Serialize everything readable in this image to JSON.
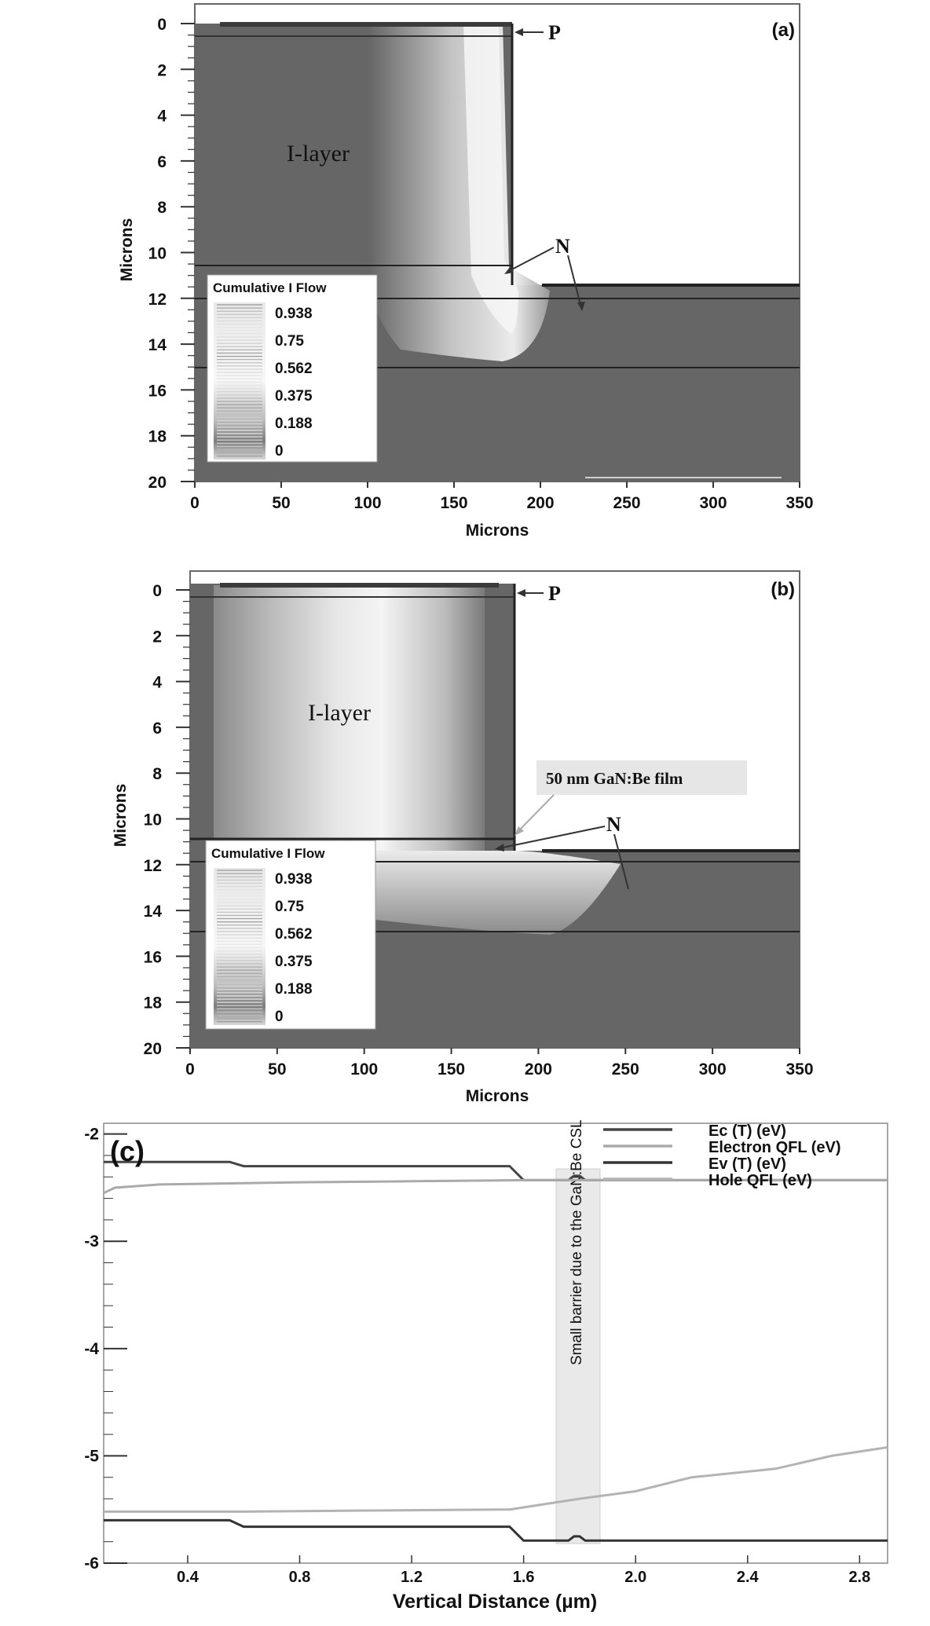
{
  "chart_data": [
    {
      "panel": "(a)",
      "type": "heatmap",
      "xlabel": "Microns",
      "ylabel": "Microns",
      "xlim": [
        0,
        350
      ],
      "ylim": [
        0,
        20
      ],
      "y_reversed": true,
      "xticks": [
        "0",
        "50",
        "100",
        "150",
        "200",
        "250",
        "300",
        "350"
      ],
      "yticks": [
        "0",
        "2",
        "4",
        "6",
        "8",
        "10",
        "12",
        "14",
        "16",
        "18",
        "20"
      ],
      "annotations": {
        "p": "P",
        "n": "N",
        "layer": "I-layer"
      },
      "legend": {
        "title": "Cumulative I Flow",
        "labels": [
          "0.938",
          "0.75",
          "0.562",
          "0.375",
          "0.188",
          "0"
        ]
      }
    },
    {
      "panel": "(b)",
      "type": "heatmap",
      "xlabel": "Microns",
      "ylabel": "Microns",
      "xlim": [
        0,
        350
      ],
      "ylim": [
        0,
        20
      ],
      "y_reversed": true,
      "xticks": [
        "0",
        "50",
        "100",
        "150",
        "200",
        "250",
        "300",
        "350"
      ],
      "yticks": [
        "0",
        "2",
        "4",
        "6",
        "8",
        "10",
        "12",
        "14",
        "16",
        "18",
        "20"
      ],
      "annotations": {
        "p": "P",
        "n": "N",
        "layer": "I-layer",
        "film": "50 nm GaN:Be film"
      },
      "legend": {
        "title": "Cumulative I Flow",
        "labels": [
          "0.938",
          "0.75",
          "0.562",
          "0.375",
          "0.188",
          "0"
        ]
      }
    },
    {
      "panel": "(c)",
      "type": "line",
      "xlabel": "Vertical Distance (µm)",
      "ylabel": "",
      "xlim": [
        0.1,
        2.9
      ],
      "ylim": [
        -6,
        -1.9
      ],
      "xticks": [
        "0.4",
        "0.8",
        "1.2",
        "1.6",
        "2.0",
        "2.4",
        "2.8"
      ],
      "yticks": [
        "-2",
        "-3",
        "-4",
        "-5",
        "-6"
      ],
      "annotation": "Small barrier due to the GaN:Be CSL",
      "series": [
        {
          "name": "Ec (T) (eV)",
          "color": "#444444",
          "x": [
            0.1,
            0.55,
            0.6,
            1.55,
            1.6,
            1.76,
            1.78,
            1.8,
            1.82,
            2.9
          ],
          "y": [
            -2.26,
            -2.26,
            -2.3,
            -2.3,
            -2.43,
            -2.43,
            -2.39,
            -2.39,
            -2.43,
            -2.43
          ]
        },
        {
          "name": "Electron QFL (eV)",
          "color": "#aaaaaa",
          "x": [
            0.1,
            0.14,
            0.3,
            0.8,
            1.2,
            1.6,
            2.0,
            2.9
          ],
          "y": [
            -2.55,
            -2.5,
            -2.47,
            -2.45,
            -2.44,
            -2.43,
            -2.43,
            -2.43
          ]
        },
        {
          "name": "Ev (T) (eV)",
          "color": "#333333",
          "x": [
            0.1,
            0.55,
            0.6,
            1.55,
            1.6,
            1.76,
            1.78,
            1.8,
            1.82,
            2.9
          ],
          "y": [
            -5.6,
            -5.6,
            -5.66,
            -5.66,
            -5.79,
            -5.79,
            -5.75,
            -5.75,
            -5.79,
            -5.79
          ]
        },
        {
          "name": "Hole QFL (eV)",
          "color": "#b3b3b3",
          "x": [
            0.1,
            0.6,
            1.0,
            1.55,
            1.8,
            2.0,
            2.2,
            2.5,
            2.7,
            2.9
          ],
          "y": [
            -5.52,
            -5.52,
            -5.51,
            -5.5,
            -5.4,
            -5.33,
            -5.2,
            -5.12,
            -5.0,
            -4.92
          ]
        }
      ]
    }
  ]
}
